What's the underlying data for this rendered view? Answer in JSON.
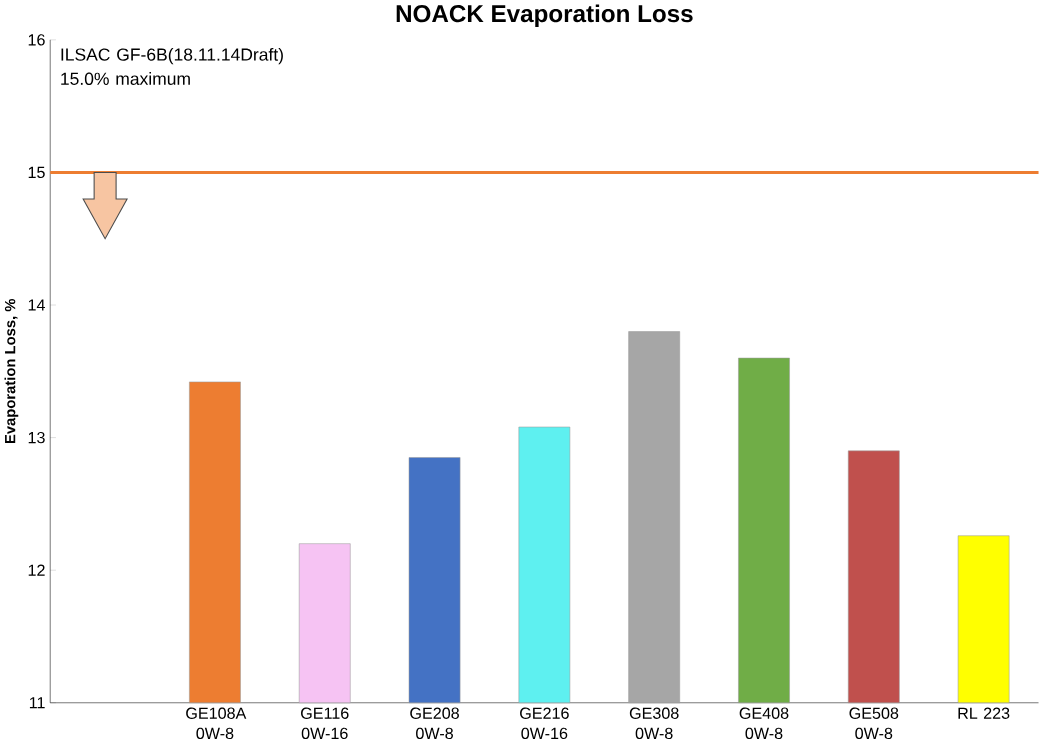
{
  "chart_data": {
    "type": "bar",
    "title": "NOACK Evaporation Loss",
    "ylabel": "Evaporation Loss, %",
    "categories": [
      null,
      "GE108A 0W-8",
      "GE116 0W-16",
      "GE208 0W-8",
      "GE216 0W-16",
      "GE308 0W-8",
      "GE408 0W-8",
      "GE508 0W-8",
      "RL 223"
    ],
    "values": [
      null,
      13.42,
      12.2,
      12.85,
      13.08,
      13.8,
      13.6,
      12.9,
      12.26
    ],
    "colors": [
      "#ed7d31",
      "#ed7d31",
      "#f6c3f3",
      "#4472c4",
      "#5ef0f0",
      "#a6a6a6",
      "#70ad47",
      "#c0504d",
      "#ffff00"
    ],
    "ylim": [
      11,
      16
    ],
    "yticks": [
      11,
      12,
      13,
      14,
      15,
      16
    ],
    "annotations": [
      "ILSAC GF-6B(18.11.14Draft) 15.0% maximum"
    ],
    "ref_lines": [
      {
        "axis": "y",
        "value": 15,
        "color": "#ed7d31"
      }
    ]
  }
}
